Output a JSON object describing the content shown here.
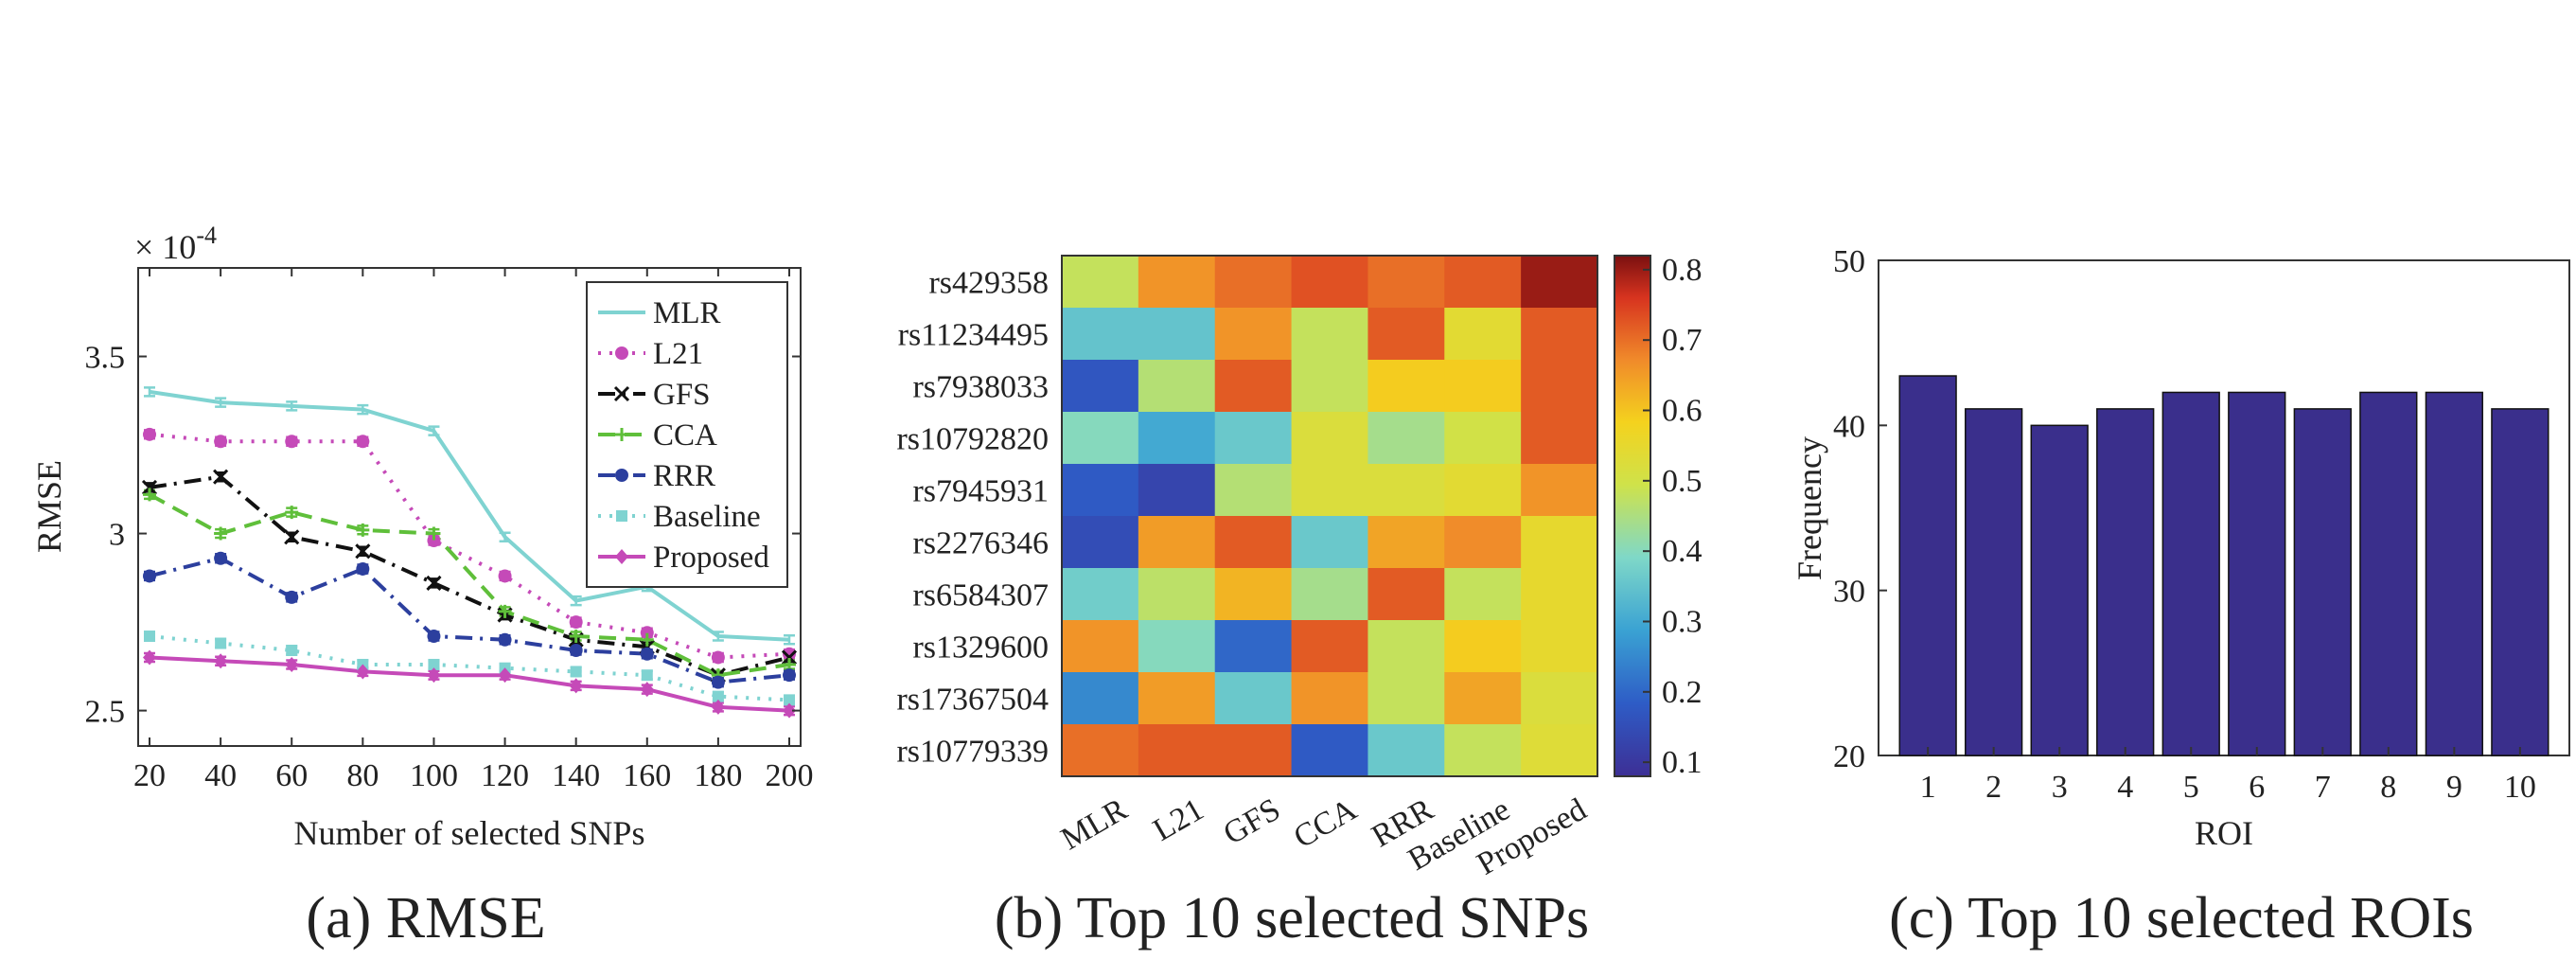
{
  "chart_data": [
    {
      "type": "line",
      "caption": "(a) RMSE",
      "xlabel": "Number of selected SNPs",
      "ylabel": "RMSE",
      "y_multiplier_label": "× 10",
      "y_multiplier_exp": "-4",
      "x": [
        20,
        40,
        60,
        80,
        100,
        120,
        140,
        160,
        180,
        200
      ],
      "xticks": [
        "20",
        "40",
        "60",
        "80",
        "100",
        "120",
        "140",
        "160",
        "180",
        "200"
      ],
      "yticks": [
        "2.5",
        "3",
        "3.5"
      ],
      "ylim": [
        2.4,
        3.75
      ],
      "legend_position": "top-right",
      "series": [
        {
          "name": "MLR",
          "color": "#7fd3d1",
          "dash": "solid",
          "marker": "none",
          "values": [
            3.4,
            3.37,
            3.36,
            3.35,
            3.29,
            2.99,
            2.81,
            2.85,
            2.71,
            2.7
          ]
        },
        {
          "name": "L21",
          "color": "#c54ab8",
          "dash": "dot",
          "marker": "circle",
          "values": [
            3.28,
            3.26,
            3.26,
            3.26,
            2.98,
            2.88,
            2.75,
            2.72,
            2.65,
            2.66
          ]
        },
        {
          "name": "GFS",
          "color": "#111111",
          "dash": "dashdot",
          "marker": "x",
          "values": [
            3.13,
            3.16,
            2.99,
            2.95,
            2.86,
            2.77,
            2.7,
            2.68,
            2.6,
            2.65
          ]
        },
        {
          "name": "CCA",
          "color": "#5fbf3a",
          "dash": "dash",
          "marker": "plus",
          "values": [
            3.11,
            3.0,
            3.06,
            3.01,
            3.0,
            2.78,
            2.71,
            2.7,
            2.6,
            2.63
          ]
        },
        {
          "name": "RRR",
          "color": "#2c3f9e",
          "dash": "dashdot",
          "marker": "circle",
          "values": [
            2.88,
            2.93,
            2.82,
            2.9,
            2.71,
            2.7,
            2.67,
            2.66,
            2.58,
            2.6
          ]
        },
        {
          "name": "Baseline",
          "color": "#7fd3d1",
          "dash": "dot",
          "marker": "square",
          "values": [
            2.71,
            2.69,
            2.67,
            2.63,
            2.63,
            2.62,
            2.61,
            2.6,
            2.54,
            2.53
          ]
        },
        {
          "name": "Proposed",
          "color": "#c54ab8",
          "dash": "solid",
          "marker": "diamond",
          "values": [
            2.65,
            2.64,
            2.63,
            2.61,
            2.6,
            2.6,
            2.57,
            2.56,
            2.51,
            2.5
          ]
        }
      ]
    },
    {
      "type": "heatmap",
      "caption": "(b) Top 10 selected SNPs",
      "rows": [
        "rs429358",
        "rs11234495",
        "rs7938033",
        "rs10792820",
        "rs7945931",
        "rs2276346",
        "rs6584307",
        "rs1329600",
        "rs17367504",
        "rs10779339"
      ],
      "columns": [
        "MLR",
        "L21",
        "GFS",
        "CCA",
        "RRR",
        "Baseline",
        "Proposed"
      ],
      "values": [
        [
          0.48,
          0.66,
          0.7,
          0.73,
          0.7,
          0.72,
          0.8
        ],
        [
          0.35,
          0.35,
          0.66,
          0.48,
          0.72,
          0.54,
          0.72
        ],
        [
          0.17,
          0.46,
          0.72,
          0.48,
          0.59,
          0.59,
          0.72
        ],
        [
          0.4,
          0.3,
          0.36,
          0.52,
          0.44,
          0.5,
          0.72
        ],
        [
          0.18,
          0.13,
          0.46,
          0.52,
          0.52,
          0.54,
          0.66
        ],
        [
          0.15,
          0.65,
          0.72,
          0.36,
          0.64,
          0.67,
          0.55
        ],
        [
          0.37,
          0.47,
          0.62,
          0.44,
          0.72,
          0.48,
          0.55
        ],
        [
          0.66,
          0.4,
          0.2,
          0.72,
          0.48,
          0.59,
          0.55
        ],
        [
          0.25,
          0.65,
          0.36,
          0.66,
          0.48,
          0.64,
          0.52
        ],
        [
          0.7,
          0.72,
          0.72,
          0.18,
          0.36,
          0.48,
          0.53
        ]
      ],
      "colorbar_ticks": [
        "0.1",
        "0.2",
        "0.3",
        "0.4",
        "0.5",
        "0.6",
        "0.7",
        "0.8"
      ],
      "colorbar_range": [
        0.08,
        0.82
      ]
    },
    {
      "type": "bar",
      "caption": "(c) Top 10 selected ROIs",
      "xlabel": "ROI",
      "ylabel": "Frequency",
      "categories": [
        "1",
        "2",
        "3",
        "4",
        "5",
        "6",
        "7",
        "8",
        "9",
        "10"
      ],
      "values": [
        43,
        41,
        40,
        41,
        42,
        42,
        41,
        42,
        42,
        41
      ],
      "yticks": [
        "20",
        "30",
        "40",
        "50"
      ],
      "ylim": [
        20,
        50
      ],
      "bar_color": "#3a2f8c"
    }
  ]
}
